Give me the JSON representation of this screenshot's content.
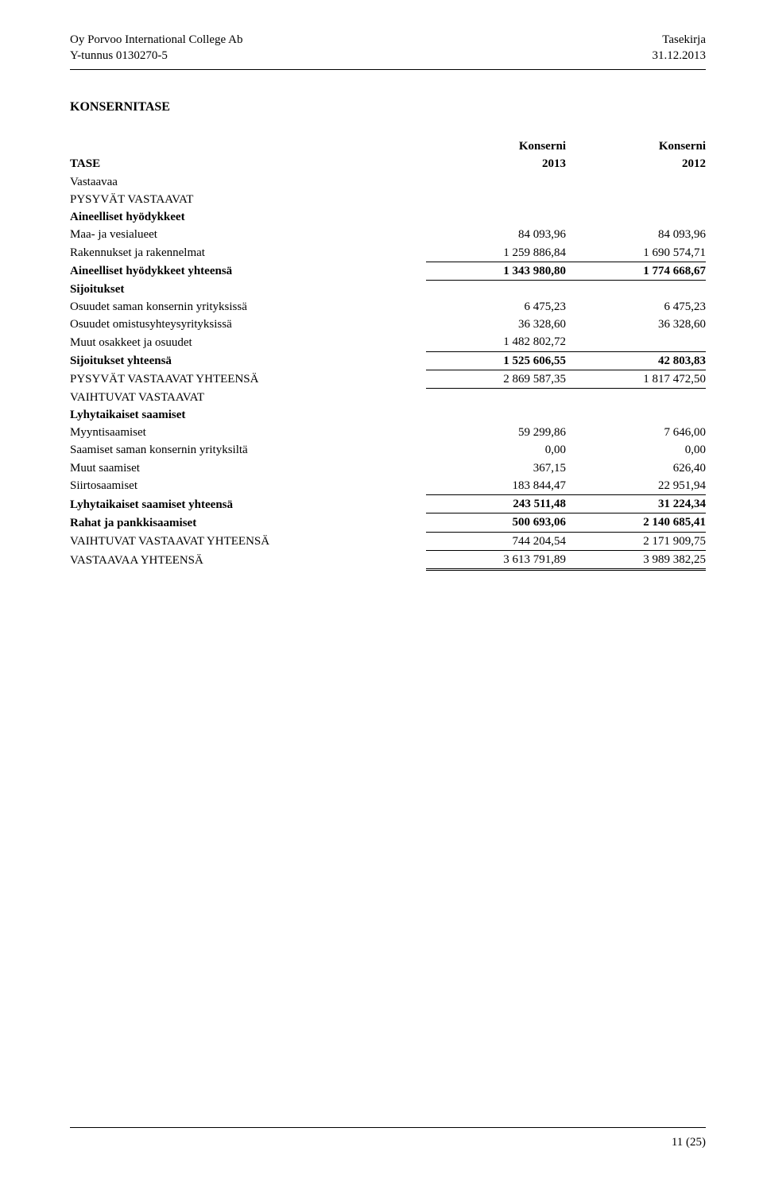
{
  "header": {
    "company": "Oy Porvoo International College Ab",
    "ytunnus": "Y-tunnus 0130270-5",
    "docType": "Tasekirja",
    "date": "31.12.2013"
  },
  "title": "KONSERNITASE",
  "colHead1": "Konserni",
  "colHead2": "Konserni",
  "year1": "2013",
  "year2": "2012",
  "labels": {
    "tase": "TASE",
    "vastaavaa": "Vastaavaa",
    "pysyvat": "PYSYVÄT VASTAAVAT",
    "aineelliset": "Aineelliset hyödykkeet",
    "maa": "Maa- ja vesialueet",
    "rakennukset": "Rakennukset ja rakennelmat",
    "aineellisetYht": "Aineelliset hyödykkeet yhteensä",
    "sijoitukset": "Sijoitukset",
    "osuudetSaman": "Osuudet saman konsernin yrityksissä",
    "osuudetOmis": "Osuudet omistusyhteysyrityksissä",
    "muutOsak": "Muut osakkeet ja osuudet",
    "sijoituksetYht": "Sijoitukset yhteensä",
    "pysyvatYht": "PYSYVÄT VASTAAVAT YHTEENSÄ",
    "vaihtuvat": "VAIHTUVAT VASTAAVAT",
    "lyhytSaam": "Lyhytaikaiset saamiset",
    "myyntis": "Myyntisaamiset",
    "saamSaman": "Saamiset saman konsernin yrityksiltä",
    "muutSaam": "Muut saamiset",
    "siirtos": "Siirtosaamiset",
    "lyhytSaamYht": "Lyhytaikaiset saamiset yhteensä",
    "rahat": "Rahat ja pankkisaamiset",
    "vaihtuvatYht": "VAIHTUVAT VASTAAVAT YHTEENSÄ",
    "vastaavaaYht": "VASTAAVAA YHTEENSÄ"
  },
  "vals": {
    "maa": [
      "84 093,96",
      "84 093,96"
    ],
    "rakennukset": [
      "1 259 886,84",
      "1 690 574,71"
    ],
    "aineellisetYht": [
      "1 343 980,80",
      "1 774 668,67"
    ],
    "osuudetSaman": [
      "6 475,23",
      "6 475,23"
    ],
    "osuudetOmis": [
      "36 328,60",
      "36 328,60"
    ],
    "muutOsak": [
      "1 482 802,72",
      ""
    ],
    "sijoituksetYht": [
      "1 525 606,55",
      "42 803,83"
    ],
    "pysyvatYht": [
      "2 869 587,35",
      "1 817 472,50"
    ],
    "myyntis": [
      "59 299,86",
      "7 646,00"
    ],
    "saamSaman": [
      "0,00",
      "0,00"
    ],
    "muutSaam": [
      "367,15",
      "626,40"
    ],
    "siirtos": [
      "183 844,47",
      "22 951,94"
    ],
    "lyhytSaamYht": [
      "243 511,48",
      "31 224,34"
    ],
    "rahat": [
      "500 693,06",
      "2 140 685,41"
    ],
    "vaihtuvatYht": [
      "744 204,54",
      "2 171 909,75"
    ],
    "vastaavaaYht": [
      "3 613 791,89",
      "3 989 382,25"
    ]
  },
  "pageNum": "11 (25)"
}
